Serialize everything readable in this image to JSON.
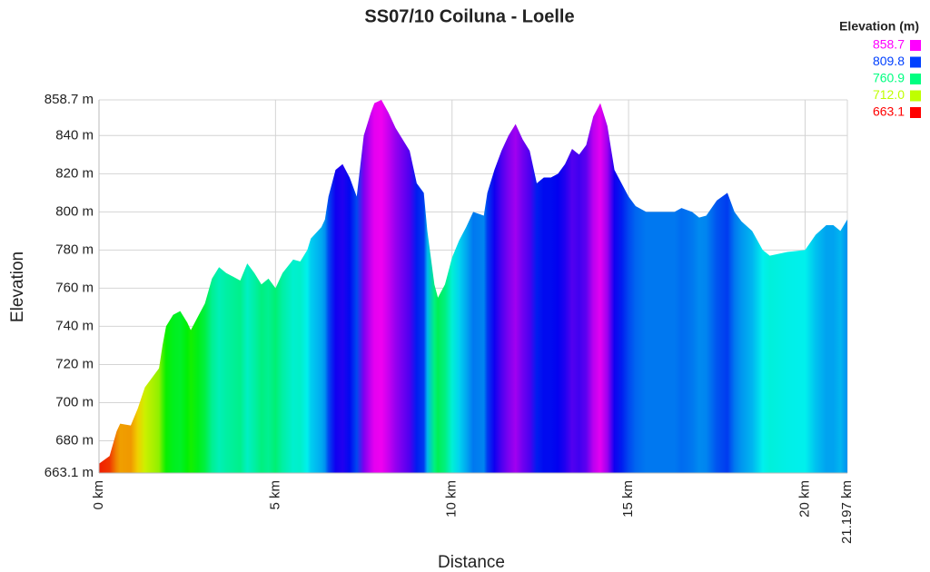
{
  "chart_data": {
    "type": "area",
    "title": "SS07/10 Coiluna - Loelle",
    "x_label": "Distance",
    "y_label": "Elevation",
    "legend_title": "Elevation (m)",
    "legend_position": "top-right",
    "legend": [
      {
        "value": 858.7,
        "label": "858.7",
        "color": "#ff00ff"
      },
      {
        "value": 809.8,
        "label": "809.8",
        "color": "#0040ff"
      },
      {
        "value": 760.9,
        "label": "760.9",
        "color": "#00ff80"
      },
      {
        "value": 712.0,
        "label": "712.0",
        "color": "#bfff00"
      },
      {
        "value": 663.1,
        "label": "663.1",
        "color": "#ff0000"
      }
    ],
    "grid": true,
    "xlim": [
      0,
      21.197
    ],
    "ylim": [
      663.1,
      858.7
    ],
    "xticks": [
      {
        "value": 0,
        "label": "0 km"
      },
      {
        "value": 5,
        "label": "5 km"
      },
      {
        "value": 10,
        "label": "10 km"
      },
      {
        "value": 15,
        "label": "15 km"
      },
      {
        "value": 20,
        "label": "20 km"
      },
      {
        "value": 21.197,
        "label": "21.197 km"
      }
    ],
    "yticks": [
      {
        "value": 663.1,
        "label": "663.1 m"
      },
      {
        "value": 680,
        "label": "680 m"
      },
      {
        "value": 700,
        "label": "700 m"
      },
      {
        "value": 720,
        "label": "720 m"
      },
      {
        "value": 740,
        "label": "740 m"
      },
      {
        "value": 760,
        "label": "760 m"
      },
      {
        "value": 780,
        "label": "780 m"
      },
      {
        "value": 800,
        "label": "800 m"
      },
      {
        "value": 820,
        "label": "820 m"
      },
      {
        "value": 840,
        "label": "840 m"
      },
      {
        "value": 858.7,
        "label": "858.7 m"
      }
    ],
    "x": [
      0,
      0.3,
      0.5,
      0.6,
      0.9,
      1.1,
      1.3,
      1.5,
      1.7,
      1.8,
      1.9,
      2.1,
      2.3,
      2.5,
      2.6,
      2.8,
      3.0,
      3.2,
      3.4,
      3.6,
      3.8,
      4.0,
      4.2,
      4.4,
      4.6,
      4.8,
      5.0,
      5.2,
      5.5,
      5.7,
      5.9,
      6.0,
      6.3,
      6.4,
      6.5,
      6.7,
      6.9,
      7.1,
      7.3,
      7.5,
      7.7,
      7.8,
      8.0,
      8.2,
      8.4,
      8.6,
      8.8,
      9.0,
      9.2,
      9.3,
      9.5,
      9.6,
      9.8,
      10.0,
      10.2,
      10.4,
      10.6,
      10.9,
      11.0,
      11.2,
      11.4,
      11.6,
      11.8,
      12.0,
      12.2,
      12.4,
      12.6,
      12.8,
      13.0,
      13.2,
      13.4,
      13.6,
      13.8,
      14.0,
      14.2,
      14.4,
      14.6,
      14.8,
      15.0,
      15.2,
      15.5,
      16.0,
      16.3,
      16.5,
      16.8,
      17.0,
      17.2,
      17.5,
      17.8,
      18.0,
      18.2,
      18.5,
      18.8,
      19.0,
      19.5,
      20.0,
      20.3,
      20.6,
      20.8,
      21.0,
      21.197
    ],
    "values": [
      668,
      672,
      685,
      689,
      688,
      697,
      708,
      713,
      718,
      730,
      740,
      746,
      748,
      742,
      738,
      745,
      752,
      765,
      771,
      768,
      766,
      764,
      773,
      768,
      762,
      765,
      760,
      768,
      775,
      774,
      780,
      786,
      792,
      796,
      808,
      822,
      825,
      818,
      808,
      840,
      852,
      857,
      858.7,
      852,
      844,
      838,
      832,
      815,
      810,
      790,
      762,
      755,
      762,
      776,
      785,
      792,
      800,
      798,
      810,
      822,
      832,
      840,
      846,
      838,
      832,
      815,
      818,
      818,
      820,
      825,
      833,
      830,
      835,
      850,
      857,
      845,
      822,
      815,
      808,
      803,
      800,
      800,
      800,
      802,
      800,
      797,
      798,
      806,
      810,
      800,
      795,
      790,
      780,
      777,
      779,
      780,
      788,
      793,
      793,
      790,
      796
    ]
  }
}
